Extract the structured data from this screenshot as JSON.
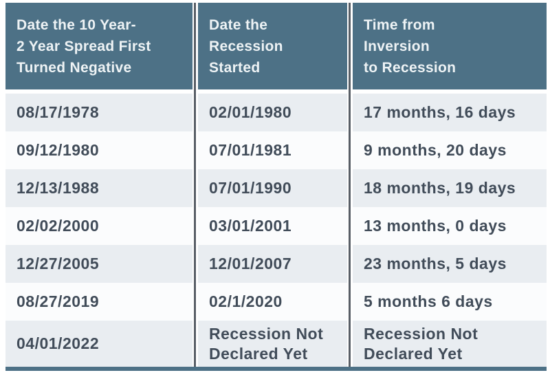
{
  "table": {
    "headers": [
      {
        "lines": [
          "Date the 10 Year-",
          "2 Year Spread First",
          "Turned Negative"
        ]
      },
      {
        "lines": [
          "Date the",
          "Recession",
          "Started"
        ]
      },
      {
        "lines": [
          "Time from",
          "Inversion",
          "to Recession"
        ]
      }
    ],
    "rows": [
      [
        "08/17/1978",
        "02/01/1980",
        "17 months, 16 days"
      ],
      [
        "09/12/1980",
        "07/01/1981",
        "9 months, 20 days"
      ],
      [
        "12/13/1988",
        "07/01/1990",
        "18 months, 19 days"
      ],
      [
        "02/02/2000",
        "03/01/2001",
        "13 months, 0 days"
      ],
      [
        "12/27/2005",
        "12/01/2007",
        "23 months, 5 days"
      ],
      [
        "08/27/2019",
        "02/1/2020",
        "5 months 6 days"
      ],
      [
        "04/01/2022",
        "Recession Not Declared Yet",
        "Recession Not Declared Yet"
      ]
    ]
  },
  "colors": {
    "header_bg": "#4d7186",
    "header_text": "#eef3f5",
    "row_odd_bg": "#e9edf1",
    "row_even_bg": "#fbfcfd",
    "body_text": "#414c59",
    "divider_rule": "#585e66",
    "bottom_bar": "#4d7186"
  }
}
